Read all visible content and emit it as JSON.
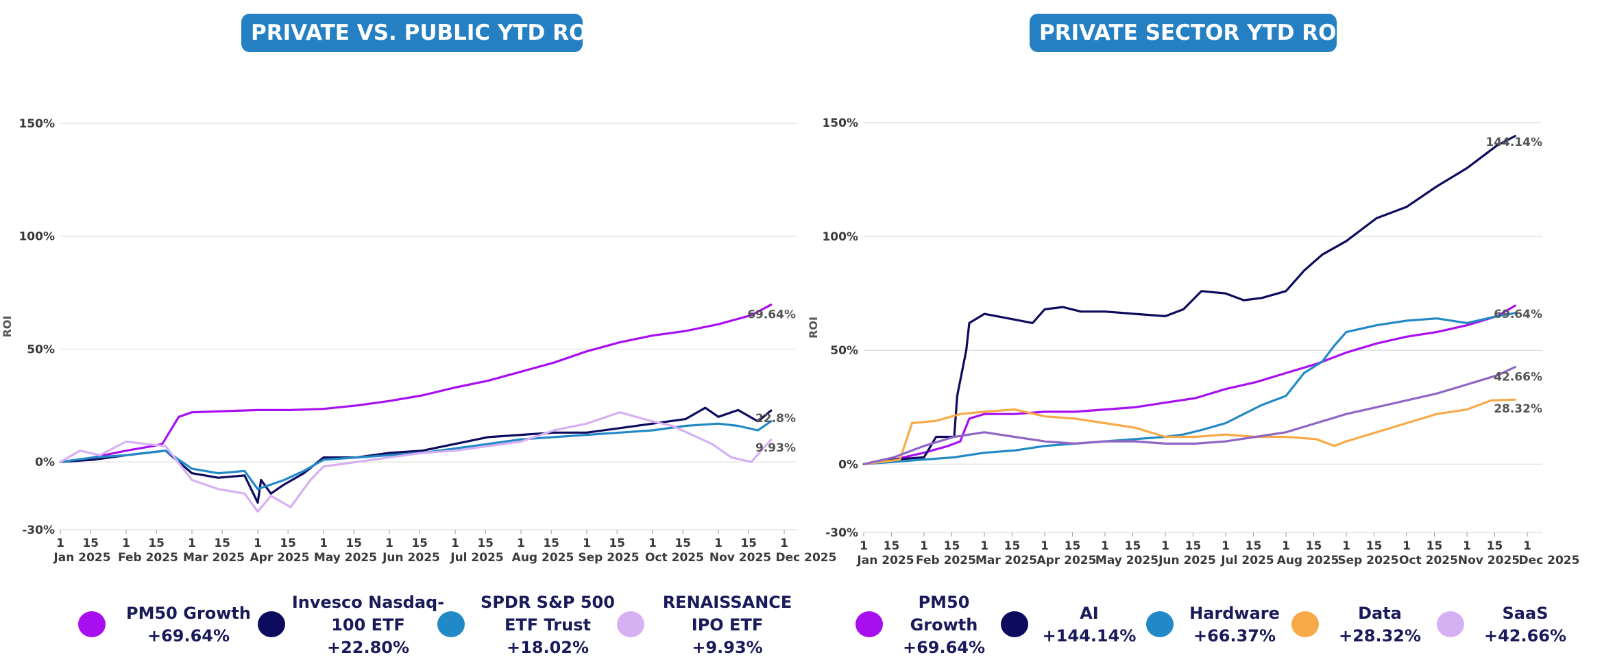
{
  "panels": {
    "left_title": "PRIVATE VS. PUBLIC YTD ROI",
    "right_title": "PRIVATE SECTOR YTD ROI"
  },
  "legend_left": [
    {
      "name": "PM50 Growth",
      "value": "+69.64%",
      "color": "#a80ff0"
    },
    {
      "name": "Invesco Nasdaq-100 ETF",
      "value": "+22.80%",
      "color": "#0c0b5e"
    },
    {
      "name": "SPDR S&P 500 ETF Trust",
      "value": "+18.02%",
      "color": "#2289c7"
    },
    {
      "name": "RENAISSANCE IPO ETF",
      "value": "+9.93%",
      "color": "#d7b0f3"
    }
  ],
  "legend_right": [
    {
      "name": "PM50 Growth",
      "value": "+69.64%",
      "color": "#a80ff0"
    },
    {
      "name": "AI",
      "value": "+144.14%",
      "color": "#0c0b5e"
    },
    {
      "name": "Hardware",
      "value": "+66.37%",
      "color": "#2289c7"
    },
    {
      "name": "Data",
      "value": "+28.32%",
      "color": "#f8a948"
    },
    {
      "name": "SaaS",
      "value": "+42.66%",
      "color": "#d7b0f3"
    }
  ],
  "chart_data": [
    {
      "type": "line",
      "title": "PRIVATE VS. PUBLIC YTD ROI",
      "xlabel": "",
      "ylabel": "ROI",
      "ylim": [
        -30,
        150
      ],
      "yticks": [
        -30,
        0,
        50,
        100,
        150
      ],
      "ytick_labels": [
        "-30%",
        "0%",
        "50%",
        "100%",
        "150%"
      ],
      "x_ticks_day": [
        "1",
        "15",
        "1",
        "15",
        "1",
        "15",
        "1",
        "15",
        "1",
        "15",
        "1",
        "15",
        "1",
        "15",
        "1",
        "15",
        "1",
        "15",
        "1",
        "15",
        "1",
        "15",
        "1"
      ],
      "x_months": [
        "Jan 2025",
        "Feb 2025",
        "Mar 2025",
        "Apr 2025",
        "May 2025",
        "Jun 2025",
        "Jul 2025",
        "Aug 2025",
        "Sep 2025",
        "Oct 2025",
        "Nov 2025",
        "Dec 2025"
      ],
      "x_month_index": [
        0,
        1,
        2,
        3,
        4,
        5,
        6,
        7,
        8,
        9,
        10,
        11
      ],
      "end_labels": [
        "69.64%",
        "22.8%",
        "9.93%"
      ],
      "end_label_values": [
        65.5,
        19.5,
        6.5
      ],
      "series": [
        {
          "name": "PM50 Growth",
          "color": "#a80ff0",
          "x": [
            0,
            0.5,
            1.0,
            1.4,
            1.55,
            1.8,
            2.0,
            2.5,
            3.0,
            3.5,
            4.0,
            4.5,
            5.0,
            5.5,
            6.0,
            6.5,
            7.0,
            7.5,
            8.0,
            8.5,
            9.0,
            9.5,
            10.0,
            10.5,
            10.8
          ],
          "values": [
            0,
            2,
            5,
            7,
            8,
            20,
            22,
            22.5,
            23,
            23,
            23.5,
            25,
            27,
            29.5,
            33,
            36,
            40,
            44,
            49,
            53,
            56,
            58,
            61,
            65,
            69.64
          ]
        },
        {
          "name": "Invesco Nasdaq-100 ETF",
          "color": "#0c0b5e",
          "x": [
            0,
            0.5,
            1.0,
            1.3,
            1.6,
            2.0,
            2.4,
            2.8,
            3.0,
            3.05,
            3.2,
            3.4,
            3.7,
            4.0,
            4.5,
            5.0,
            5.5,
            6.0,
            6.5,
            7.0,
            7.5,
            8.0,
            8.5,
            9.0,
            9.5,
            9.8,
            10.0,
            10.3,
            10.6,
            10.8
          ],
          "values": [
            0,
            1,
            3,
            4,
            5,
            -5,
            -7,
            -6,
            -18,
            -8,
            -14,
            -10,
            -5,
            2,
            2,
            4,
            5,
            8,
            11,
            12,
            13,
            13,
            15,
            17,
            19,
            24,
            20,
            23,
            18,
            22.8
          ]
        },
        {
          "name": "SPDR S&P 500 ETF Trust",
          "color": "#2289c7",
          "x": [
            0,
            0.5,
            1.0,
            1.3,
            1.6,
            2.0,
            2.4,
            2.8,
            3.0,
            3.2,
            3.4,
            3.7,
            4.0,
            4.5,
            5.0,
            5.5,
            6.0,
            6.5,
            7.0,
            7.5,
            8.0,
            8.5,
            9.0,
            9.5,
            10.0,
            10.3,
            10.6,
            10.8
          ],
          "values": [
            0,
            2,
            3,
            4,
            5,
            -3,
            -5,
            -4,
            -12,
            -10,
            -8,
            -4,
            1,
            2,
            3,
            4,
            6,
            8,
            10,
            11,
            12,
            13,
            14,
            16,
            17,
            16,
            14,
            18.02
          ]
        },
        {
          "name": "RENAISSANCE IPO ETF",
          "color": "#d7b0f3",
          "x": [
            0,
            0.3,
            0.6,
            1.0,
            1.3,
            1.6,
            2.0,
            2.4,
            2.8,
            3.0,
            3.2,
            3.5,
            3.8,
            4.0,
            4.5,
            5.0,
            5.5,
            6.0,
            6.5,
            7.0,
            7.5,
            8.0,
            8.5,
            9.0,
            9.3,
            9.6,
            9.9,
            10.2,
            10.5,
            10.8
          ],
          "values": [
            0,
            5,
            3,
            9,
            8,
            7,
            -8,
            -12,
            -14,
            -22,
            -15,
            -20,
            -8,
            -2,
            0,
            2,
            4,
            5,
            7,
            9,
            14,
            17,
            22,
            18,
            16,
            12,
            8,
            2,
            0,
            9.93
          ]
        }
      ]
    },
    {
      "type": "line",
      "title": "PRIVATE SECTOR YTD ROI",
      "xlabel": "",
      "ylabel": "ROI",
      "ylim": [
        -30,
        150
      ],
      "yticks": [
        -30,
        0,
        50,
        100,
        150
      ],
      "ytick_labels": [
        "-30%",
        "0%",
        "50%",
        "100%",
        "150%"
      ],
      "x_ticks_day": [
        "1",
        "15",
        "1",
        "15",
        "1",
        "15",
        "1",
        "15",
        "1",
        "15",
        "1",
        "15",
        "1",
        "15",
        "1",
        "15",
        "1",
        "15",
        "1",
        "15",
        "1",
        "15",
        "1"
      ],
      "x_months": [
        "Jan 2025",
        "Feb 2025",
        "Mar 2025",
        "Apr 2025",
        "May 2025",
        "Jun 2025",
        "Jul 2025",
        "Aug 2025",
        "Sep 2025",
        "Oct 2025",
        "Nov 2025",
        "Dec 2025"
      ],
      "x_month_index": [
        0,
        1,
        2,
        3,
        4,
        5,
        6,
        7,
        8,
        9,
        10,
        11
      ],
      "end_labels": [
        "144.14%",
        "69.64%",
        "42.66%",
        "28.32%"
      ],
      "end_label_values": [
        141.5,
        66,
        38.5,
        24.5
      ],
      "series": [
        {
          "name": "PM50 Growth",
          "color": "#a80ff0",
          "x": [
            0,
            0.5,
            1.0,
            1.4,
            1.6,
            1.75,
            2.0,
            2.5,
            3.0,
            3.5,
            4.0,
            4.5,
            5.0,
            5.5,
            6.0,
            6.5,
            7.0,
            7.5,
            8.0,
            8.5,
            9.0,
            9.5,
            10.0,
            10.5,
            10.8
          ],
          "values": [
            0,
            2,
            5,
            8,
            10,
            20,
            22,
            22,
            23,
            23,
            24,
            25,
            27,
            29,
            33,
            36,
            40,
            44,
            49,
            53,
            56,
            58,
            61,
            65,
            69.64
          ]
        },
        {
          "name": "AI",
          "color": "#0c0b5e",
          "x": [
            0,
            0.5,
            1.0,
            1.2,
            1.5,
            1.55,
            1.7,
            1.75,
            2.0,
            2.4,
            2.8,
            3.0,
            3.3,
            3.6,
            4.0,
            4.5,
            5.0,
            5.3,
            5.6,
            6.0,
            6.3,
            6.6,
            7.0,
            7.3,
            7.6,
            8.0,
            8.5,
            9.0,
            9.5,
            10.0,
            10.5,
            10.8
          ],
          "values": [
            0,
            2,
            3,
            12,
            12,
            30,
            50,
            62,
            66,
            64,
            62,
            68,
            69,
            67,
            67,
            66,
            65,
            68,
            76,
            75,
            72,
            73,
            76,
            85,
            92,
            98,
            108,
            113,
            122,
            130,
            140,
            144.14
          ]
        },
        {
          "name": "Hardware",
          "color": "#2289c7",
          "x": [
            0,
            0.5,
            1.0,
            1.5,
            2.0,
            2.5,
            3.0,
            3.5,
            4.0,
            4.5,
            5.0,
            5.3,
            5.6,
            6.0,
            6.3,
            6.6,
            7.0,
            7.3,
            7.6,
            7.8,
            8.0,
            8.5,
            9.0,
            9.5,
            10.0,
            10.5,
            10.8
          ],
          "values": [
            0,
            1,
            2,
            3,
            5,
            6,
            8,
            9,
            10,
            11,
            12,
            13,
            15,
            18,
            22,
            26,
            30,
            40,
            45,
            52,
            58,
            61,
            63,
            64,
            62,
            65,
            66.37
          ]
        },
        {
          "name": "Data",
          "color": "#f8a948",
          "x": [
            0,
            0.6,
            0.8,
            1.2,
            1.6,
            2.0,
            2.5,
            3.0,
            3.5,
            4.0,
            4.5,
            5.0,
            5.5,
            6.0,
            6.5,
            7.0,
            7.5,
            7.8,
            8.0,
            8.5,
            9.0,
            9.5,
            10.0,
            10.4,
            10.8
          ],
          "values": [
            0,
            2,
            18,
            19,
            22,
            23,
            24,
            21,
            20,
            18,
            16,
            12,
            12,
            13,
            12,
            12,
            11,
            8,
            10,
            14,
            18,
            22,
            24,
            28,
            28.32
          ]
        },
        {
          "name": "SaaS",
          "color": "#8f65c5",
          "x": [
            0,
            0.5,
            1.0,
            1.5,
            2.0,
            2.5,
            3.0,
            3.5,
            4.0,
            4.5,
            5.0,
            5.5,
            6.0,
            6.5,
            7.0,
            7.5,
            8.0,
            8.5,
            9.0,
            9.5,
            10.0,
            10.5,
            10.8
          ],
          "values": [
            0,
            3,
            8,
            12,
            14,
            12,
            10,
            9,
            10,
            10,
            9,
            9,
            10,
            12,
            14,
            18,
            22,
            25,
            28,
            31,
            35,
            39,
            42.66
          ]
        }
      ]
    }
  ]
}
